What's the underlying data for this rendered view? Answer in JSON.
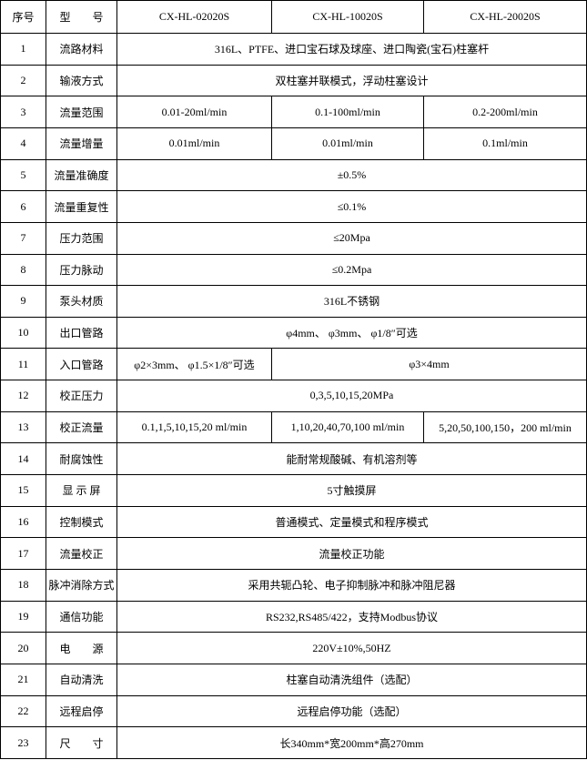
{
  "table": {
    "header": [
      "序号",
      "型　　号",
      "CX-HL-02020S",
      "CX-HL-10020S",
      "CX-HL-20020S"
    ],
    "rows": [
      {
        "no": "1",
        "item": "流路材料",
        "cells": [
          "316L、PTFE、进口宝石球及球座、进口陶瓷(宝石)柱塞杆"
        ]
      },
      {
        "no": "2",
        "item": "输液方式",
        "cells": [
          "双柱塞并联模式，浮动柱塞设计"
        ]
      },
      {
        "no": "3",
        "item": "流量范围",
        "cells": [
          "0.01-20ml/min",
          "0.1-100ml/min",
          "0.2-200ml/min"
        ]
      },
      {
        "no": "4",
        "item": "流量增量",
        "cells": [
          "0.01ml/min",
          "0.01ml/min",
          "0.1ml/min"
        ]
      },
      {
        "no": "5",
        "item": "流量准确度",
        "cells": [
          "±0.5%"
        ]
      },
      {
        "no": "6",
        "item": "流量重复性",
        "cells": [
          "≤0.1%"
        ]
      },
      {
        "no": "7",
        "item": "压力范围",
        "cells": [
          "≤20Mpa"
        ]
      },
      {
        "no": "8",
        "item": "压力脉动",
        "cells": [
          "≤0.2Mpa"
        ]
      },
      {
        "no": "9",
        "item": "泵头材质",
        "cells": [
          "316L不锈钢"
        ]
      },
      {
        "no": "10",
        "item": "出口管路",
        "cells": [
          "φ4mm、 φ3mm、 φ1/8″可选"
        ]
      },
      {
        "no": "11",
        "item": "入口管路",
        "cells": [
          "φ2×3mm、 φ1.5×1/8″可选",
          "φ3×4mm"
        ]
      },
      {
        "no": "12",
        "item": "校正压力",
        "cells": [
          "0,3,5,10,15,20MPa"
        ]
      },
      {
        "no": "13",
        "item": "校正流量",
        "cells": [
          "0.1,1,5,10,15,20 ml/min",
          "1,10,20,40,70,100 ml/min",
          "5,20,50,100,150，200 ml/min"
        ]
      },
      {
        "no": "14",
        "item": "耐腐蚀性",
        "cells": [
          "能耐常规酸碱、有机溶剂等"
        ]
      },
      {
        "no": "15",
        "item": "显 示 屏",
        "cells": [
          "5寸触摸屏"
        ]
      },
      {
        "no": "16",
        "item": "控制模式",
        "cells": [
          "普通模式、定量模式和程序模式"
        ]
      },
      {
        "no": "17",
        "item": "流量校正",
        "cells": [
          "流量校正功能"
        ]
      },
      {
        "no": "18",
        "item": "脉冲消除方式",
        "cells": [
          "采用共轭凸轮、电子抑制脉冲和脉冲阻尼器"
        ]
      },
      {
        "no": "19",
        "item": "通信功能",
        "cells": [
          "RS232,RS485/422，支持Modbus协议"
        ]
      },
      {
        "no": "20",
        "item": "电　　源",
        "cells": [
          "220V±10%,50HZ"
        ]
      },
      {
        "no": "21",
        "item": "自动清洗",
        "cells": [
          "柱塞自动清洗组件（选配）"
        ]
      },
      {
        "no": "22",
        "item": "远程启停",
        "cells": [
          "远程启停功能（选配）"
        ]
      },
      {
        "no": "23",
        "item": "尺　　寸",
        "cells": [
          "长340mm*宽200mm*高270mm"
        ]
      }
    ]
  }
}
